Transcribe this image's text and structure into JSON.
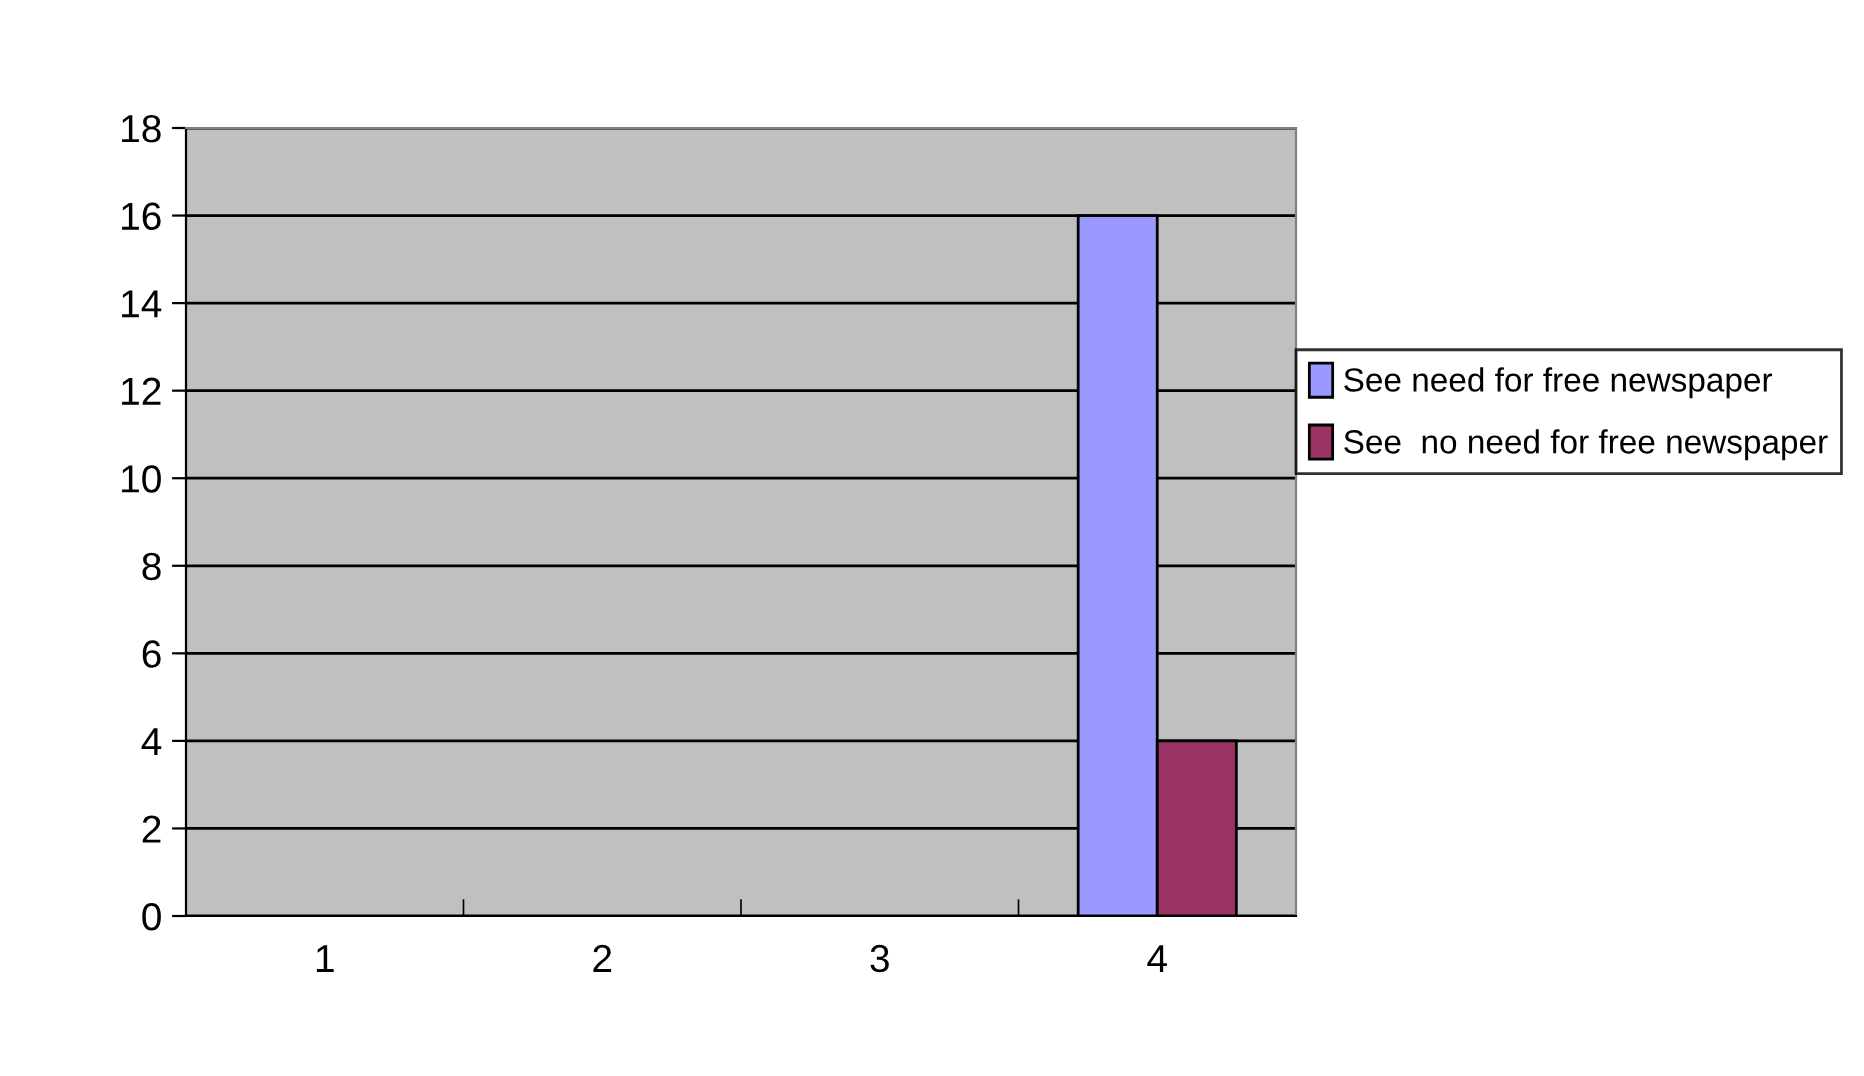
{
  "chart_data": {
    "type": "bar",
    "categories": [
      "1",
      "2",
      "3",
      "4"
    ],
    "series": [
      {
        "name": "See need for free newspaper",
        "color": "#9999ff",
        "values": [
          null,
          null,
          null,
          16
        ]
      },
      {
        "name": "See  no need for free newspaper",
        "color": "#993366",
        "values": [
          null,
          null,
          null,
          4
        ]
      }
    ],
    "ylim": [
      0,
      18
    ],
    "yticks": [
      0,
      2,
      4,
      6,
      8,
      10,
      12,
      14,
      16,
      18
    ],
    "grid": "y",
    "legend": "right"
  }
}
